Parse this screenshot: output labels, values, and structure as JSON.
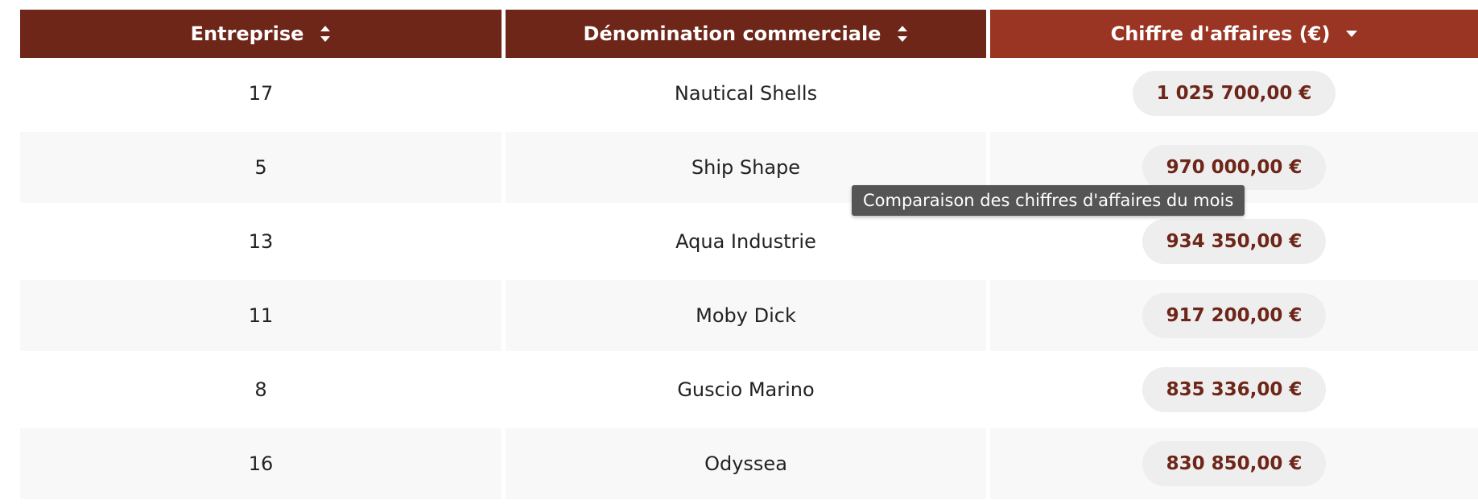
{
  "table": {
    "columns": [
      {
        "label": "Entreprise",
        "sort": "none"
      },
      {
        "label": "Dénomination commerciale",
        "sort": "none"
      },
      {
        "label": "Chiffre d'affaires (€)",
        "sort": "descending"
      }
    ],
    "rows": [
      {
        "entreprise": "17",
        "denomination": "Nautical Shells",
        "chiffre": "1 025 700,00 €"
      },
      {
        "entreprise": "5",
        "denomination": "Ship Shape",
        "chiffre": "970 000,00 €"
      },
      {
        "entreprise": "13",
        "denomination": "Aqua Industrie",
        "chiffre": "934 350,00 €"
      },
      {
        "entreprise": "11",
        "denomination": "Moby Dick",
        "chiffre": "917 200,00 €"
      },
      {
        "entreprise": "8",
        "denomination": "Guscio Marino",
        "chiffre": "835 336,00 €"
      },
      {
        "entreprise": "16",
        "denomination": "Odyssea",
        "chiffre": "830 850,00 €"
      }
    ]
  },
  "tooltip": {
    "text": "Comparaison des chiffres d'affaires du mois"
  },
  "colors": {
    "header_dark": "#6e2619",
    "header_active": "#9b3523",
    "value_text": "#6e2619",
    "pill_bg": "#eeeeee",
    "row_alt": "#f8f8f8"
  },
  "icons": {
    "sort_both": "sort-up-down-icon",
    "sort_desc": "sort-descending-icon"
  }
}
